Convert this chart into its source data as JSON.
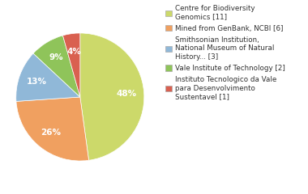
{
  "labels": [
    "Centre for Biodiversity\nGenomics [11]",
    "Mined from GenBank, NCBI [6]",
    "Smithsonian Institution,\nNational Museum of Natural\nHistory... [3]",
    "Vale Institute of Technology [2]",
    "Instituto Tecnologico da Vale\npara Desenvolvimento\nSustentavel [1]"
  ],
  "values": [
    11,
    6,
    3,
    2,
    1
  ],
  "colors": [
    "#ccd96a",
    "#f0a060",
    "#90b8d8",
    "#8fc45a",
    "#d96050"
  ],
  "startangle": 90,
  "background_color": "#ffffff",
  "text_color": "#303030",
  "pct_fontsize": 7.5,
  "legend_fontsize": 6.3
}
